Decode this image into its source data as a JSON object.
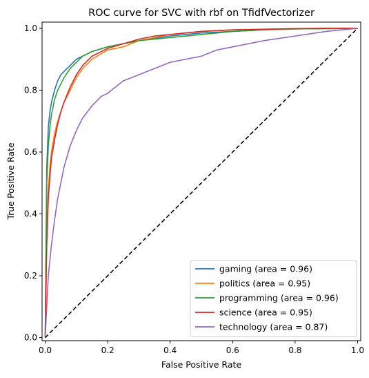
{
  "chart_data": {
    "type": "line",
    "title": "ROC curve for SVC with rbf on TfidfVectorizer",
    "xlabel": "False Positive Rate",
    "ylabel": "True Positive Rate",
    "xlim": [
      -0.01,
      1.01
    ],
    "ylim": [
      -0.01,
      1.02
    ],
    "xticks": [
      "0.0",
      "0.2",
      "0.4",
      "0.6",
      "0.8",
      "1.0"
    ],
    "yticks": [
      "0.0",
      "0.2",
      "0.4",
      "0.6",
      "0.8",
      "1.0"
    ],
    "grid": false,
    "legend_position": "bottom-right",
    "diagonal": {
      "x": [
        0,
        1
      ],
      "y": [
        0,
        1
      ],
      "color": "#000000",
      "style": "dashed"
    },
    "series": [
      {
        "name": "gaming (area = 0.96)",
        "color": "#1f77b4",
        "x": [
          0,
          0.005,
          0.01,
          0.015,
          0.02,
          0.03,
          0.04,
          0.05,
          0.06,
          0.08,
          0.1,
          0.12,
          0.15,
          0.2,
          0.25,
          0.3,
          0.4,
          0.5,
          0.6,
          0.7,
          0.8,
          0.9,
          1.0
        ],
        "y": [
          0,
          0.55,
          0.68,
          0.73,
          0.76,
          0.8,
          0.83,
          0.85,
          0.86,
          0.88,
          0.9,
          0.91,
          0.925,
          0.94,
          0.95,
          0.96,
          0.975,
          0.985,
          0.99,
          0.995,
          0.998,
          0.999,
          1.0
        ]
      },
      {
        "name": "politics (area = 0.95)",
        "color": "#ff7f0e",
        "x": [
          0,
          0.005,
          0.01,
          0.015,
          0.02,
          0.03,
          0.04,
          0.05,
          0.06,
          0.08,
          0.1,
          0.12,
          0.15,
          0.2,
          0.25,
          0.3,
          0.35,
          0.4,
          0.5,
          0.6,
          0.7,
          0.8,
          0.9,
          1.0
        ],
        "y": [
          0,
          0.35,
          0.48,
          0.55,
          0.6,
          0.66,
          0.7,
          0.73,
          0.76,
          0.8,
          0.84,
          0.87,
          0.9,
          0.93,
          0.94,
          0.96,
          0.97,
          0.98,
          0.99,
          0.995,
          0.997,
          0.999,
          1.0,
          1.0
        ]
      },
      {
        "name": "programming (area = 0.96)",
        "color": "#2ca02c",
        "x": [
          0,
          0.005,
          0.01,
          0.015,
          0.02,
          0.03,
          0.04,
          0.05,
          0.06,
          0.08,
          0.1,
          0.12,
          0.15,
          0.2,
          0.25,
          0.3,
          0.4,
          0.5,
          0.6,
          0.7,
          0.8,
          0.9,
          1.0
        ],
        "y": [
          0,
          0.5,
          0.62,
          0.68,
          0.72,
          0.77,
          0.8,
          0.82,
          0.84,
          0.87,
          0.89,
          0.91,
          0.925,
          0.94,
          0.95,
          0.96,
          0.97,
          0.98,
          0.99,
          0.995,
          0.998,
          0.999,
          1.0
        ]
      },
      {
        "name": "science (area = 0.95)",
        "color": "#d62728",
        "x": [
          0,
          0.005,
          0.01,
          0.015,
          0.02,
          0.03,
          0.04,
          0.05,
          0.06,
          0.08,
          0.1,
          0.12,
          0.15,
          0.2,
          0.25,
          0.3,
          0.35,
          0.4,
          0.5,
          0.6,
          0.7,
          0.8,
          0.9,
          1.0
        ],
        "y": [
          0,
          0.3,
          0.45,
          0.52,
          0.58,
          0.64,
          0.69,
          0.73,
          0.76,
          0.81,
          0.85,
          0.88,
          0.91,
          0.935,
          0.95,
          0.965,
          0.975,
          0.98,
          0.99,
          0.995,
          0.997,
          0.999,
          1.0,
          1.0
        ]
      },
      {
        "name": "technology (area = 0.87)",
        "color": "#9467bd",
        "x": [
          0,
          0.005,
          0.01,
          0.02,
          0.03,
          0.04,
          0.05,
          0.06,
          0.08,
          0.1,
          0.12,
          0.15,
          0.18,
          0.2,
          0.25,
          0.3,
          0.35,
          0.4,
          0.5,
          0.55,
          0.6,
          0.7,
          0.8,
          0.9,
          0.95,
          1.0
        ],
        "y": [
          0,
          0.1,
          0.2,
          0.3,
          0.38,
          0.45,
          0.5,
          0.55,
          0.62,
          0.67,
          0.71,
          0.75,
          0.78,
          0.79,
          0.83,
          0.85,
          0.87,
          0.89,
          0.91,
          0.93,
          0.94,
          0.96,
          0.975,
          0.99,
          0.995,
          1.0
        ]
      }
    ]
  }
}
